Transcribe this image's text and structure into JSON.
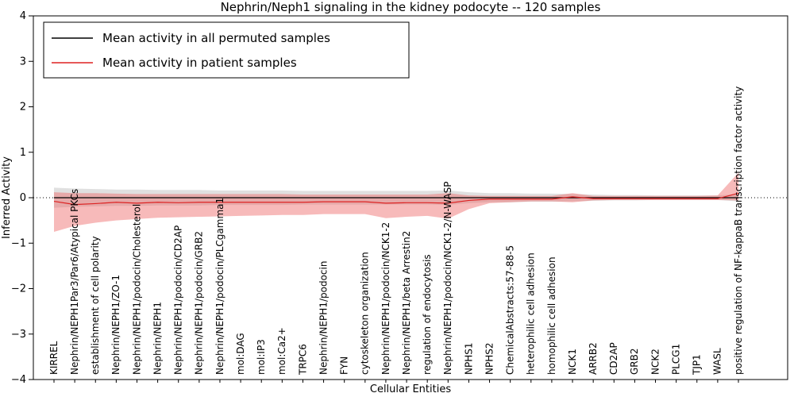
{
  "chart_data": {
    "type": "line",
    "title": "Nephrin/Neph1 signaling in the kidney podocyte -- 120 samples",
    "xlabel": "Cellular Entities",
    "ylabel": "Inferred Activity",
    "ylim": [
      -4,
      4
    ],
    "yticks": [
      -4,
      -3,
      -2,
      -1,
      0,
      1,
      2,
      3,
      4
    ],
    "grid": false,
    "legend_position": "upper left",
    "categories": [
      "KIRREL",
      "Nephrin/NEPH1Par3/Par6/Atypical PKCs",
      "establishment of cell polarity",
      "Nephrin/NEPH1/ZO-1",
      "Nephrin/NEPH1/podocin/Cholesterol",
      "Nephrin/NEPH1",
      "Nephrin/NEPH1/podocin/CD2AP",
      "Nephrin/NEPH1/podocin/GRB2",
      "Nephrin/NEPH1/podocin/PLCgamma1",
      "mol:DAG",
      "mol:IP3",
      "mol:Ca2+",
      "TRPC6",
      "Nephrin/NEPH1/podocin",
      "FYN",
      "cytoskeleton organization",
      "Nephrin/NEPH1/podocin/NCK1-2",
      "Nephrin/NEPH1/beta Arrestin2",
      "regulation of endocytosis",
      "Nephrin/NEPH1/podocin/NCK1-2/N-WASP",
      "NPHS1",
      "NPHS2",
      "ChemicalAbstracts:57-88-5",
      "heterophilic cell adhesion",
      "homophilic cell adhesion",
      "NCK1",
      "ARRB2",
      "CD2AP",
      "GRB2",
      "NCK2",
      "PLCG1",
      "TJP1",
      "WASL",
      "positive regulation of NF-kappaB transcription factor activity"
    ],
    "series": [
      {
        "name": "Mean activity in all permuted samples",
        "color": "#000000",
        "band_color": "#bbbbbb",
        "band_opacity": 0.45,
        "values": [
          0,
          0,
          0,
          0,
          0,
          0,
          0,
          0,
          0,
          0,
          0,
          0,
          0,
          0,
          0,
          0,
          0,
          0,
          0,
          0,
          0,
          0,
          0,
          0,
          0,
          0,
          0,
          0,
          0,
          0,
          0,
          0,
          0,
          0
        ],
        "band_upper": [
          0.22,
          0.2,
          0.19,
          0.18,
          0.18,
          0.17,
          0.17,
          0.17,
          0.16,
          0.16,
          0.16,
          0.16,
          0.15,
          0.15,
          0.15,
          0.15,
          0.15,
          0.15,
          0.15,
          0.16,
          0.12,
          0.1,
          0.1,
          0.09,
          0.09,
          0.08,
          0.07,
          0.06,
          0.06,
          0.05,
          0.05,
          0.05,
          0.05,
          0.08
        ],
        "band_lower": [
          -0.22,
          -0.2,
          -0.19,
          -0.18,
          -0.18,
          -0.17,
          -0.17,
          -0.17,
          -0.16,
          -0.16,
          -0.16,
          -0.16,
          -0.15,
          -0.15,
          -0.15,
          -0.15,
          -0.15,
          -0.15,
          -0.15,
          -0.16,
          -0.12,
          -0.1,
          -0.1,
          -0.09,
          -0.09,
          -0.08,
          -0.07,
          -0.06,
          -0.06,
          -0.05,
          -0.05,
          -0.05,
          -0.05,
          -0.08
        ]
      },
      {
        "name": "Mean activity in patient samples",
        "color": "#dd2222",
        "band_color": "#ee6666",
        "band_opacity": 0.45,
        "values": [
          -0.08,
          -0.15,
          -0.13,
          -0.1,
          -0.12,
          -0.1,
          -0.11,
          -0.1,
          -0.1,
          -0.1,
          -0.1,
          -0.1,
          -0.1,
          -0.09,
          -0.09,
          -0.09,
          -0.12,
          -0.11,
          -0.11,
          -0.12,
          -0.06,
          -0.03,
          -0.03,
          -0.03,
          -0.03,
          0.02,
          -0.02,
          -0.02,
          -0.02,
          -0.02,
          -0.02,
          -0.02,
          -0.02,
          0.1
        ],
        "band_upper": [
          0.12,
          0.1,
          0.1,
          0.09,
          0.08,
          0.08,
          0.08,
          0.08,
          0.08,
          0.08,
          0.08,
          0.08,
          0.07,
          0.07,
          0.07,
          0.07,
          0.07,
          0.07,
          0.07,
          0.1,
          0.05,
          0.04,
          0.04,
          0.04,
          0.04,
          0.1,
          0.04,
          0.04,
          0.04,
          0.04,
          0.04,
          0.04,
          0.05,
          0.55
        ],
        "band_lower": [
          -0.75,
          -0.62,
          -0.55,
          -0.5,
          -0.47,
          -0.44,
          -0.43,
          -0.42,
          -0.41,
          -0.4,
          -0.39,
          -0.38,
          -0.38,
          -0.36,
          -0.36,
          -0.36,
          -0.45,
          -0.42,
          -0.4,
          -0.46,
          -0.25,
          -0.12,
          -0.1,
          -0.08,
          -0.08,
          -0.1,
          -0.06,
          -0.05,
          -0.05,
          -0.05,
          -0.05,
          -0.05,
          -0.05,
          -0.06
        ]
      }
    ],
    "legend": [
      "Mean activity in all permuted samples",
      "Mean activity in patient samples"
    ]
  }
}
